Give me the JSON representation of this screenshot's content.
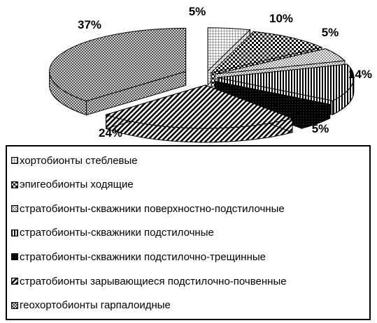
{
  "chart_data": {
    "type": "pie",
    "title": "",
    "categories": [
      "хортобионты стеблевые",
      "эпигеобионты ходящие",
      "стратобионты-скважники поверхностно-подстилочные",
      "стратобионты-скважники подстилочные",
      "стратобионты-скважники подстилочно-трещинные",
      "стратобионты зарывающиеся подстилочно-почвенные",
      "геохортобионты гарпалоидные"
    ],
    "values": [
      5,
      10,
      5,
      14,
      5,
      24,
      37
    ],
    "labels": [
      "5%",
      "10%",
      "5%",
      "14%",
      "5%",
      "24%",
      "37%"
    ],
    "style": "3d-exploded",
    "legend": "bottom"
  }
}
